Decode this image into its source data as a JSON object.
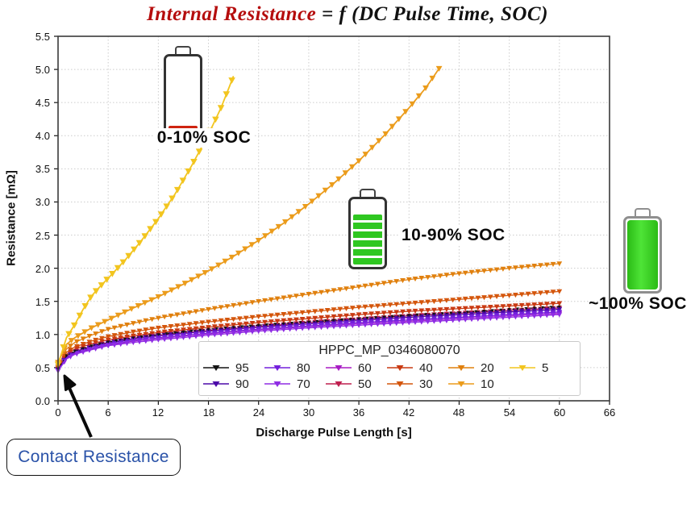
{
  "title": {
    "lhs": "Internal Resistance",
    "rhs": " = f (DC Pulse Time, SOC)"
  },
  "annotations": {
    "soc_low": "0-10% SOC",
    "soc_mid": "10-90% SOC",
    "soc_full": "~100% SOC",
    "contact": "Contact Resistance"
  },
  "colors": {
    "title_red": "#b50d0d",
    "contact_text": "#2a52a8",
    "battery_red": "#cf2410",
    "battery_green": "#2fc721",
    "grid": "#cccccc",
    "spine": "#3a3a3a"
  },
  "chart_data": {
    "type": "line",
    "xlabel": "Discharge Pulse Length [s]",
    "ylabel": "Resistance [mΩ]",
    "xlim": [
      0,
      66
    ],
    "ylim": [
      0,
      5.5
    ],
    "x_ticks": [
      0,
      6,
      12,
      18,
      24,
      30,
      36,
      42,
      48,
      54,
      60,
      66
    ],
    "y_ticks": [
      0.0,
      0.5,
      1.0,
      1.5,
      2.0,
      2.5,
      3.0,
      3.5,
      4.0,
      4.5,
      5.0,
      5.5
    ],
    "grid": true,
    "legend_title": "HPPC_MP_0346080070",
    "legend_rows": [
      [
        "95",
        "80",
        "60",
        "40",
        "20",
        "5"
      ],
      [
        "90",
        "70",
        "50",
        "30",
        "10",
        ""
      ]
    ],
    "draw_order": [
      "20",
      "30",
      "40",
      "50",
      "60",
      "90",
      "80",
      "70",
      "95",
      "10",
      "5"
    ],
    "series": [
      {
        "name": "95",
        "color": "#141414",
        "style": "dashed",
        "marker_step": 1.0,
        "marker_size": 2.0,
        "line_width": 1.1,
        "x": [
          0,
          1,
          2,
          4,
          6,
          9,
          12,
          18,
          24,
          30,
          36,
          42,
          48,
          54,
          60
        ],
        "y": [
          0.48,
          0.68,
          0.75,
          0.83,
          0.89,
          0.95,
          1.0,
          1.08,
          1.14,
          1.19,
          1.24,
          1.29,
          1.33,
          1.38,
          1.42
        ]
      },
      {
        "name": "90",
        "color": "#4c09a8",
        "style": "solid",
        "marker_step": 0.75,
        "marker_size": 3.4,
        "line_width": 1.3,
        "x": [
          0,
          1,
          2,
          4,
          6,
          9,
          12,
          18,
          24,
          30,
          36,
          42,
          48,
          54,
          60
        ],
        "y": [
          0.47,
          0.66,
          0.73,
          0.81,
          0.87,
          0.93,
          0.98,
          1.05,
          1.11,
          1.16,
          1.21,
          1.26,
          1.3,
          1.34,
          1.38
        ]
      },
      {
        "name": "80",
        "color": "#7420dc",
        "style": "solid",
        "marker_step": 0.75,
        "marker_size": 3.4,
        "line_width": 1.3,
        "x": [
          0,
          1,
          2,
          4,
          6,
          9,
          12,
          18,
          24,
          30,
          36,
          42,
          48,
          54,
          60
        ],
        "y": [
          0.46,
          0.65,
          0.72,
          0.79,
          0.85,
          0.91,
          0.95,
          1.02,
          1.08,
          1.13,
          1.18,
          1.22,
          1.26,
          1.3,
          1.34
        ]
      },
      {
        "name": "70",
        "color": "#8f2ce4",
        "style": "solid",
        "marker_step": 0.75,
        "marker_size": 3.4,
        "line_width": 1.3,
        "x": [
          0,
          1,
          2,
          4,
          6,
          9,
          12,
          18,
          24,
          30,
          36,
          42,
          48,
          54,
          60
        ],
        "y": [
          0.45,
          0.63,
          0.7,
          0.77,
          0.83,
          0.88,
          0.92,
          0.99,
          1.05,
          1.1,
          1.14,
          1.18,
          1.22,
          1.26,
          1.3
        ]
      },
      {
        "name": "60",
        "color": "#a81cc4",
        "style": "solid",
        "marker_step": 0.75,
        "marker_size": 3.4,
        "line_width": 1.3,
        "x": [
          0,
          1,
          2,
          4,
          6,
          9,
          12,
          18,
          24,
          30,
          36,
          42,
          48,
          54,
          60
        ],
        "y": [
          0.46,
          0.64,
          0.71,
          0.78,
          0.84,
          0.9,
          0.94,
          1.01,
          1.07,
          1.12,
          1.16,
          1.2,
          1.24,
          1.28,
          1.32
        ]
      },
      {
        "name": "50",
        "color": "#bf1f4e",
        "style": "solid",
        "marker_step": 0.75,
        "marker_size": 3.4,
        "line_width": 1.3,
        "x": [
          0,
          1,
          2,
          4,
          6,
          9,
          12,
          18,
          24,
          30,
          36,
          42,
          48,
          54,
          60
        ],
        "y": [
          0.47,
          0.67,
          0.74,
          0.82,
          0.88,
          0.94,
          0.99,
          1.06,
          1.12,
          1.18,
          1.23,
          1.28,
          1.32,
          1.36,
          1.4
        ]
      },
      {
        "name": "40",
        "color": "#c93a12",
        "style": "solid",
        "marker_step": 0.75,
        "marker_size": 3.4,
        "line_width": 1.3,
        "x": [
          0,
          1,
          2,
          4,
          6,
          9,
          12,
          18,
          24,
          30,
          36,
          42,
          48,
          54,
          60
        ],
        "y": [
          0.48,
          0.7,
          0.78,
          0.86,
          0.92,
          0.98,
          1.03,
          1.11,
          1.18,
          1.24,
          1.3,
          1.35,
          1.39,
          1.43,
          1.47
        ]
      },
      {
        "name": "30",
        "color": "#d4560c",
        "style": "solid",
        "marker_step": 0.75,
        "marker_size": 3.4,
        "line_width": 1.3,
        "x": [
          0,
          1,
          2,
          4,
          6,
          9,
          12,
          18,
          24,
          30,
          36,
          42,
          48,
          54,
          60
        ],
        "y": [
          0.5,
          0.73,
          0.81,
          0.9,
          0.97,
          1.04,
          1.1,
          1.19,
          1.27,
          1.34,
          1.41,
          1.47,
          1.53,
          1.59,
          1.65
        ]
      },
      {
        "name": "20",
        "color": "#e0800e",
        "style": "solid",
        "marker_step": 0.75,
        "marker_size": 3.4,
        "line_width": 1.3,
        "x": [
          0,
          1,
          2,
          4,
          6,
          9,
          12,
          18,
          24,
          30,
          36,
          42,
          48,
          54,
          60
        ],
        "y": [
          0.52,
          0.78,
          0.88,
          0.99,
          1.08,
          1.17,
          1.25,
          1.38,
          1.5,
          1.61,
          1.72,
          1.83,
          1.92,
          2.0,
          2.07
        ]
      },
      {
        "name": "10",
        "color": "#eb9c1c",
        "style": "solid",
        "marker_step": 0.8,
        "marker_size": 3.9,
        "line_width": 1.8,
        "x": [
          0,
          1,
          2,
          4,
          6,
          9,
          12,
          15,
          18,
          21,
          24,
          27,
          30,
          33,
          36,
          39,
          42,
          44,
          45.8
        ],
        "y": [
          0.58,
          0.85,
          0.95,
          1.1,
          1.22,
          1.4,
          1.57,
          1.76,
          1.96,
          2.18,
          2.42,
          2.68,
          2.97,
          3.28,
          3.62,
          4.0,
          4.42,
          4.72,
          5.05
        ]
      },
      {
        "name": "5",
        "color": "#f2c51f",
        "style": "solid",
        "marker_step": 0.65,
        "marker_size": 4.3,
        "line_width": 1.8,
        "x": [
          0,
          1,
          2,
          3,
          4,
          5,
          6,
          8,
          10,
          12,
          14,
          16,
          18,
          19.5,
          21
        ],
        "y": [
          0.55,
          0.95,
          1.15,
          1.38,
          1.58,
          1.72,
          1.85,
          2.12,
          2.42,
          2.75,
          3.12,
          3.55,
          4.02,
          4.42,
          4.9
        ]
      }
    ]
  }
}
